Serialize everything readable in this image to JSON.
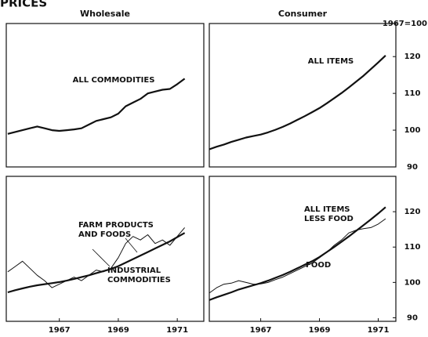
{
  "title": "PRICES",
  "chart_data": [
    {
      "type": "line",
      "title": "Wholesale",
      "x": [
        1965.25,
        1965.5,
        1965.75,
        1966,
        1966.25,
        1966.5,
        1966.75,
        1967,
        1967.25,
        1967.5,
        1967.75,
        1968,
        1968.25,
        1968.5,
        1968.75,
        1969,
        1969.25,
        1969.5,
        1969.75,
        1970,
        1970.25,
        1970.5,
        1970.75,
        1971,
        1971.25
      ],
      "series": [
        {
          "name": "ALL COMMODITIES",
          "color": "#111111",
          "line_width": 2.2,
          "values": [
            99,
            99.5,
            100,
            100.5,
            101,
            100.5,
            100,
            99.8,
            100,
            100.2,
            100.5,
            101.5,
            102.5,
            103,
            103.5,
            104.5,
            106.5,
            107.5,
            108.5,
            110,
            110.5,
            111,
            111.2,
            112.5,
            114
          ]
        }
      ],
      "xlim": [
        1965.2,
        1971.9
      ],
      "ylim": [
        90,
        129
      ]
    },
    {
      "type": "line",
      "title": "Consumer",
      "y_label": "1967=100",
      "x": [
        1965.25,
        1965.5,
        1965.75,
        1966,
        1966.25,
        1966.5,
        1966.75,
        1967,
        1967.25,
        1967.5,
        1967.75,
        1968,
        1968.25,
        1968.5,
        1968.75,
        1969,
        1969.25,
        1969.5,
        1969.75,
        1970,
        1970.25,
        1970.5,
        1970.75,
        1971,
        1971.25
      ],
      "series": [
        {
          "name": "ALL ITEMS",
          "color": "#111111",
          "line_width": 2.2,
          "values": [
            94.8,
            95.5,
            96.1,
            96.8,
            97.4,
            98,
            98.4,
            98.8,
            99.4,
            100.1,
            100.9,
            101.8,
            102.8,
            103.8,
            104.9,
            106,
            107.3,
            108.7,
            110.1,
            111.6,
            113.2,
            114.8,
            116.6,
            118.4,
            120.3
          ]
        }
      ],
      "xlim": [
        1965.25,
        1971.6
      ],
      "ylim": [
        90,
        129
      ],
      "yticks": [
        90,
        100,
        110,
        120
      ]
    },
    {
      "type": "line",
      "x": [
        1965.25,
        1965.5,
        1965.75,
        1966,
        1966.25,
        1966.5,
        1966.75,
        1967,
        1967.25,
        1967.5,
        1967.75,
        1968,
        1968.25,
        1968.5,
        1968.75,
        1969,
        1969.25,
        1969.5,
        1969.75,
        1970,
        1970.25,
        1970.5,
        1970.75,
        1971,
        1971.25
      ],
      "series": [
        {
          "name": "FARM PRODUCTS AND FOODS",
          "color": "#111111",
          "line_width": 1,
          "values": [
            103,
            104.5,
            106,
            104,
            102,
            100.5,
            98.5,
            99.5,
            100.5,
            101.5,
            100.5,
            102,
            103.5,
            103,
            104,
            107,
            111,
            113,
            112,
            113.5,
            111,
            112,
            110.5,
            113,
            115.5
          ]
        },
        {
          "name": "INDUSTRIAL COMMODITIES",
          "color": "#111111",
          "line_width": 2.2,
          "values": [
            97.2,
            97.8,
            98.3,
            98.8,
            99.2,
            99.5,
            99.8,
            100.1,
            100.5,
            101,
            101.5,
            102,
            102.6,
            103.2,
            103.8,
            104.6,
            105.6,
            106.6,
            107.6,
            108.6,
            109.6,
            110.6,
            111.6,
            112.8,
            114
          ]
        }
      ],
      "xlim": [
        1965.2,
        1971.9
      ],
      "ylim": [
        89,
        130
      ],
      "xticks": [
        1967,
        1969,
        1971
      ]
    },
    {
      "type": "line",
      "x": [
        1965.25,
        1965.5,
        1965.75,
        1966,
        1966.25,
        1966.5,
        1966.75,
        1967,
        1967.25,
        1967.5,
        1967.75,
        1968,
        1968.25,
        1968.5,
        1968.75,
        1969,
        1969.25,
        1969.5,
        1969.75,
        1970,
        1970.25,
        1970.5,
        1970.75,
        1971,
        1971.25
      ],
      "series": [
        {
          "name": "ALL ITEMS LESS FOOD",
          "color": "#111111",
          "line_width": 2.2,
          "values": [
            95,
            95.8,
            96.5,
            97.2,
            98,
            98.6,
            99.2,
            99.8,
            100.5,
            101.3,
            102.1,
            103,
            104,
            105,
            106,
            107.2,
            108.6,
            110,
            111.5,
            113,
            114.6,
            116.2,
            117.8,
            119.5,
            121.3
          ]
        },
        {
          "name": "FOOD",
          "color": "#111111",
          "line_width": 1,
          "values": [
            97,
            98.5,
            99.5,
            99.8,
            100.5,
            100,
            99.5,
            99.6,
            100,
            100.8,
            101.5,
            102.5,
            103.5,
            104.5,
            105.5,
            107,
            108.5,
            110.5,
            112,
            114,
            114.8,
            115.2,
            115.5,
            116.5,
            118
          ]
        }
      ],
      "xlim": [
        1965.25,
        1971.6
      ],
      "ylim": [
        89,
        130
      ],
      "yticks": [
        90,
        100,
        110,
        120
      ],
      "xticks": [
        1967,
        1969,
        1971
      ]
    }
  ]
}
